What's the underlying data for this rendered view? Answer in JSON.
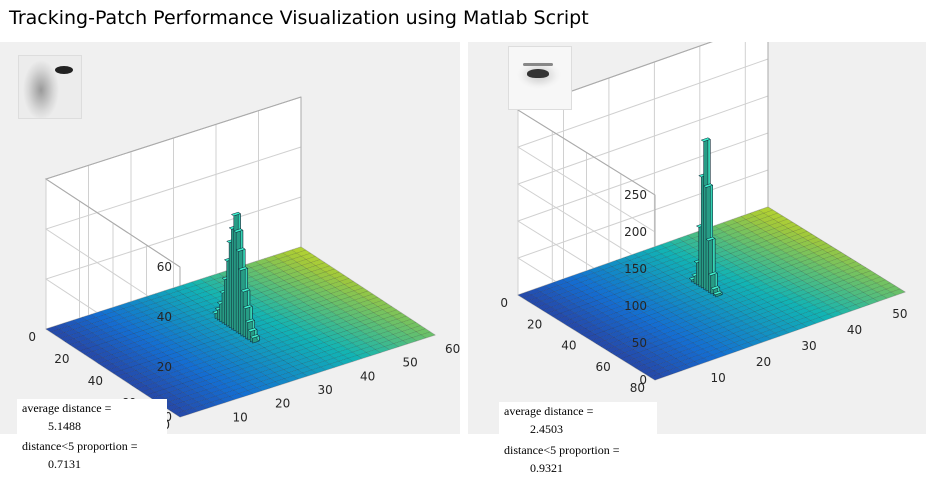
{
  "page": {
    "title": "Tracking-Patch Performance Visualization using Matlab Script"
  },
  "panels": [
    {
      "stats": {
        "avg_label": "average distance =",
        "avg_value": "5.1488",
        "prop_label": "distance<5 proportion =",
        "prop_value": "0.7131"
      }
    },
    {
      "stats": {
        "avg_label": "average distance =",
        "avg_value": "2.4503",
        "prop_label": "distance<5 proportion =",
        "prop_value": "0.9321"
      }
    }
  ],
  "chart_data": [
    {
      "type": "bar3d",
      "title": "",
      "x_ticks": [
        "10",
        "20",
        "30",
        "40",
        "50",
        "60"
      ],
      "y_ticks": [
        "0",
        "20",
        "40",
        "60",
        "80"
      ],
      "z_ticks": [
        "0",
        "20",
        "40",
        "60"
      ],
      "xlim": [
        0,
        60
      ],
      "ylim": [
        0,
        80
      ],
      "zlim": [
        0,
        60
      ],
      "grid": true,
      "colormap": "parula",
      "peak": {
        "x": 30,
        "y": 38,
        "z": 46
      },
      "series": [
        {
          "values": [
            2,
            4,
            7,
            12,
            18,
            26,
            34,
            40,
            46,
            40,
            33,
            26,
            18,
            12,
            7,
            4,
            2
          ]
        }
      ]
    },
    {
      "type": "bar3d",
      "title": "",
      "x_ticks": [
        "10",
        "20",
        "30",
        "40",
        "50"
      ],
      "y_ticks": [
        "0",
        "20",
        "40",
        "60",
        "80"
      ],
      "z_ticks": [
        "0",
        "50",
        "100",
        "150",
        "200",
        "250"
      ],
      "xlim": [
        0,
        55
      ],
      "ylim": [
        0,
        80
      ],
      "zlim": [
        0,
        250
      ],
      "grid": true,
      "colormap": "parula",
      "peak": {
        "x": 28,
        "y": 36,
        "z": 200
      },
      "series": [
        {
          "values": [
            3,
            10,
            30,
            80,
            150,
            200,
            140,
            70,
            25,
            8,
            3
          ]
        }
      ]
    }
  ]
}
